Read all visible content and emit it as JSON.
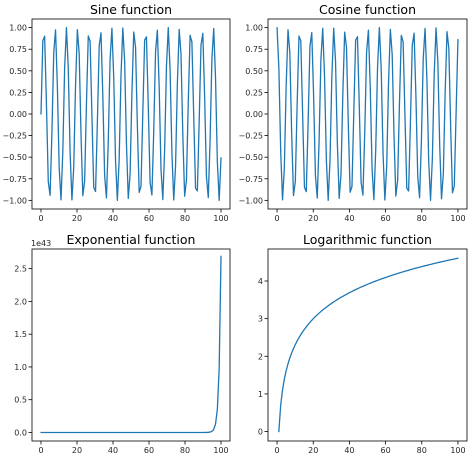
{
  "chart_data": [
    {
      "type": "line",
      "title": "Sine function",
      "function": "sin(x)",
      "x_range": [
        0,
        100
      ],
      "sample_count": 100,
      "xlim": [
        -5,
        105
      ],
      "ylim": [
        -1.1,
        1.1
      ],
      "x_ticks": [
        0,
        20,
        40,
        60,
        80,
        100
      ],
      "x_tick_labels": [
        "0",
        "20",
        "40",
        "60",
        "80",
        "100"
      ],
      "y_ticks": [
        1.0,
        0.75,
        0.5,
        0.25,
        0.0,
        -0.25,
        -0.5,
        -0.75,
        -1.0
      ],
      "y_tick_labels": [
        "1.00",
        "0.75",
        "0.50",
        "0.25",
        "0.00",
        "−0.25",
        "−0.50",
        "−0.75",
        "−1.00"
      ],
      "offset_label": "",
      "grid": false,
      "line_color": "#1f77b4"
    },
    {
      "type": "line",
      "title": "Cosine function",
      "function": "cos(x)",
      "x_range": [
        0,
        100
      ],
      "sample_count": 100,
      "xlim": [
        -5,
        105
      ],
      "ylim": [
        -1.1,
        1.1
      ],
      "x_ticks": [
        0,
        20,
        40,
        60,
        80,
        100
      ],
      "x_tick_labels": [
        "0",
        "20",
        "40",
        "60",
        "80",
        "100"
      ],
      "y_ticks": [
        1.0,
        0.75,
        0.5,
        0.25,
        0.0,
        -0.25,
        -0.5,
        -0.75,
        -1.0
      ],
      "y_tick_labels": [
        "1.00",
        "0.75",
        "0.50",
        "0.25",
        "0.00",
        "−0.25",
        "−0.50",
        "−0.75",
        "−1.00"
      ],
      "offset_label": "",
      "grid": false,
      "line_color": "#1f77b4"
    },
    {
      "type": "line",
      "title": "Exponential function",
      "function": "exp(x)",
      "x_range": [
        0,
        100
      ],
      "sample_count": 100,
      "xlim": [
        -5,
        105
      ],
      "ylim": [
        -1.3e+42,
        2.8e+43
      ],
      "x_ticks": [
        0,
        20,
        40,
        60,
        80,
        100
      ],
      "x_tick_labels": [
        "0",
        "20",
        "40",
        "60",
        "80",
        "100"
      ],
      "y_ticks": [
        2.5e+43,
        2e+43,
        1.5e+43,
        1e+43,
        5e+42,
        0
      ],
      "y_tick_labels": [
        "2.5",
        "2.0",
        "1.5",
        "1.0",
        "0.5",
        "0.0"
      ],
      "offset_label": "1e43",
      "grid": false,
      "line_color": "#1f77b4"
    },
    {
      "type": "line",
      "title": "Logarithmic function",
      "function": "log(x)",
      "x_range": [
        1,
        100
      ],
      "sample_count": 100,
      "xlim": [
        -5,
        105
      ],
      "ylim": [
        -0.25,
        4.85
      ],
      "x_ticks": [
        0,
        20,
        40,
        60,
        80,
        100
      ],
      "x_tick_labels": [
        "0",
        "20",
        "40",
        "60",
        "80",
        "100"
      ],
      "y_ticks": [
        4,
        3,
        2,
        1,
        0
      ],
      "y_tick_labels": [
        "4",
        "3",
        "2",
        "1",
        "0"
      ],
      "offset_label": "",
      "grid": false,
      "line_color": "#1f77b4"
    }
  ]
}
